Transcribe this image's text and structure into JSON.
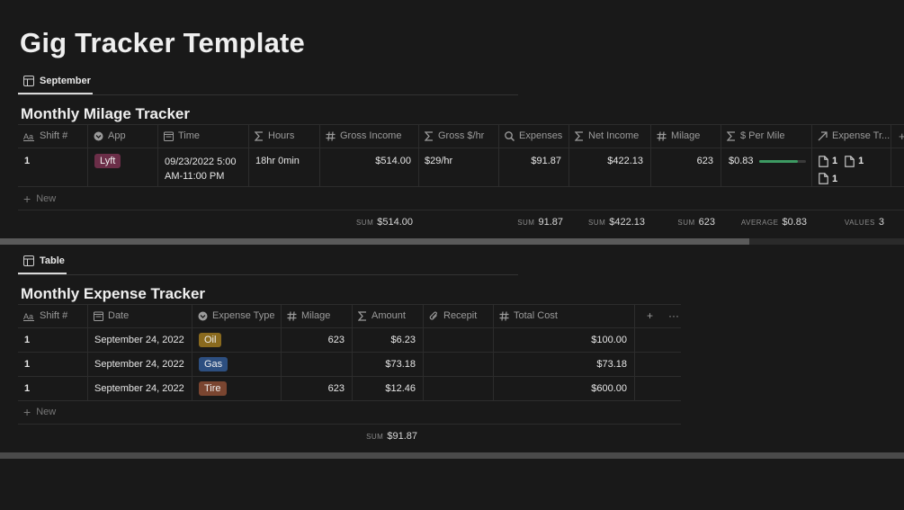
{
  "page": {
    "title": "Gig Tracker Template"
  },
  "milage_view": {
    "tab_label": "September",
    "title": "Monthly Milage Tracker",
    "columns": [
      {
        "label": "Shift #",
        "icon": "text-icon"
      },
      {
        "label": "App",
        "icon": "select-icon"
      },
      {
        "label": "Time",
        "icon": "calendar-icon"
      },
      {
        "label": "Hours",
        "icon": "sigma-icon"
      },
      {
        "label": "Gross Income",
        "icon": "hash-icon"
      },
      {
        "label": "Gross $/hr",
        "icon": "sigma-icon"
      },
      {
        "label": "Expenses",
        "icon": "search-icon"
      },
      {
        "label": "Net Income",
        "icon": "sigma-icon"
      },
      {
        "label": "Milage",
        "icon": "hash-icon"
      },
      {
        "label": "$ Per Mile",
        "icon": "sigma-icon"
      },
      {
        "label": "Expense Tr...",
        "icon": "relation-icon"
      }
    ],
    "row": {
      "shift": "1",
      "app": "Lyft",
      "app_color": "#6b2e48",
      "time_line1": "09/23/2022 5:00",
      "time_line2": "AM-11:00 PM",
      "hours": "18hr 0min",
      "gross_income": "$514.00",
      "gross_per_hr": "$29/hr",
      "expenses": "$91.87",
      "net_income": "$422.13",
      "milage": "623",
      "per_mile": "$0.83",
      "per_mile_progress": 0.83,
      "progress_color": "#3d9a62",
      "relations": [
        "1",
        "1",
        "1"
      ]
    },
    "new_label": "New",
    "calc": {
      "gross_income": {
        "label": "SUM",
        "value": "$514.00"
      },
      "expenses": {
        "label": "SUM",
        "value": "91.87"
      },
      "net_income": {
        "label": "SUM",
        "value": "$422.13"
      },
      "milage": {
        "label": "SUM",
        "value": "623"
      },
      "per_mile": {
        "label": "AVERAGE",
        "value": "$0.83"
      },
      "expense_tr": {
        "label": "VALUES",
        "value": "3"
      }
    }
  },
  "expense_view": {
    "tab_label": "Table",
    "title": "Monthly Expense Tracker",
    "columns": [
      {
        "label": "Shift #",
        "icon": "text-icon"
      },
      {
        "label": "Date",
        "icon": "calendar-icon"
      },
      {
        "label": "Expense Type",
        "icon": "select-icon"
      },
      {
        "label": "Milage",
        "icon": "hash-icon"
      },
      {
        "label": "Amount",
        "icon": "sigma-icon"
      },
      {
        "label": "Recepit",
        "icon": "paperclip-icon"
      },
      {
        "label": "Total Cost",
        "icon": "hash-icon"
      }
    ],
    "rows": [
      {
        "shift": "1",
        "date": "September 24, 2022",
        "type": "Oil",
        "type_color": "#8a6a1e",
        "milage": "623",
        "amount": "$6.23",
        "receipt": "",
        "total": "$100.00"
      },
      {
        "shift": "1",
        "date": "September 24, 2022",
        "type": "Gas",
        "type_color": "#2d4f80",
        "milage": "",
        "amount": "$73.18",
        "receipt": "",
        "total": "$73.18"
      },
      {
        "shift": "1",
        "date": "September 24, 2022",
        "type": "Tire",
        "type_color": "#7a4530",
        "milage": "623",
        "amount": "$12.46",
        "receipt": "",
        "total": "$600.00"
      }
    ],
    "new_label": "New",
    "calc": {
      "amount": {
        "label": "SUM",
        "value": "$91.87"
      }
    }
  },
  "icons": {
    "table-icon": "⊞",
    "add-icon": "+",
    "more-icon": "···"
  }
}
